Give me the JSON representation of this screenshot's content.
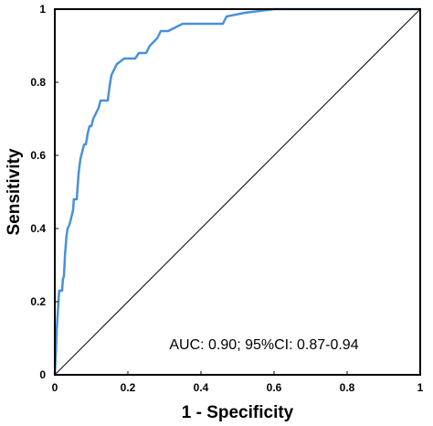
{
  "chart_data": {
    "type": "line",
    "xlabel": "1 - Specificity",
    "ylabel": "Sensitivity",
    "xlim": [
      0,
      1
    ],
    "ylim": [
      0,
      1
    ],
    "x_ticks": [
      {
        "value": 0,
        "label": "0"
      },
      {
        "value": 0.2,
        "label": "0.2"
      },
      {
        "value": 0.4,
        "label": "0.4"
      },
      {
        "value": 0.6,
        "label": "0.6"
      },
      {
        "value": 0.8,
        "label": "0.8"
      },
      {
        "value": 1,
        "label": "1"
      }
    ],
    "y_ticks": [
      {
        "value": 0,
        "label": "0"
      },
      {
        "value": 0.2,
        "label": "0.2"
      },
      {
        "value": 0.4,
        "label": "0.4"
      },
      {
        "value": 0.6,
        "label": "0.6"
      },
      {
        "value": 0.8,
        "label": "0.8"
      },
      {
        "value": 1,
        "label": "1"
      }
    ],
    "grid": false,
    "annotation": "AUC: 0.90; 95%CI: 0.87-0.94",
    "series": [
      {
        "color": "#4a90d9",
        "points": [
          [
            0,
            0
          ],
          [
            0.003,
            0.06
          ],
          [
            0.005,
            0.12
          ],
          [
            0.01,
            0.2
          ],
          [
            0.012,
            0.23
          ],
          [
            0.02,
            0.23
          ],
          [
            0.022,
            0.26
          ],
          [
            0.025,
            0.27
          ],
          [
            0.028,
            0.33
          ],
          [
            0.032,
            0.38
          ],
          [
            0.035,
            0.4
          ],
          [
            0.04,
            0.41
          ],
          [
            0.045,
            0.43
          ],
          [
            0.05,
            0.45
          ],
          [
            0.052,
            0.48
          ],
          [
            0.06,
            0.48
          ],
          [
            0.065,
            0.55
          ],
          [
            0.07,
            0.59
          ],
          [
            0.075,
            0.61
          ],
          [
            0.08,
            0.63
          ],
          [
            0.085,
            0.63
          ],
          [
            0.09,
            0.66
          ],
          [
            0.095,
            0.68
          ],
          [
            0.1,
            0.68
          ],
          [
            0.105,
            0.7
          ],
          [
            0.11,
            0.71
          ],
          [
            0.12,
            0.73
          ],
          [
            0.125,
            0.75
          ],
          [
            0.14,
            0.75
          ],
          [
            0.145,
            0.75
          ],
          [
            0.15,
            0.79
          ],
          [
            0.155,
            0.82
          ],
          [
            0.16,
            0.83
          ],
          [
            0.17,
            0.85
          ],
          [
            0.19,
            0.865
          ],
          [
            0.22,
            0.865
          ],
          [
            0.23,
            0.88
          ],
          [
            0.25,
            0.88
          ],
          [
            0.26,
            0.9
          ],
          [
            0.28,
            0.92
          ],
          [
            0.29,
            0.94
          ],
          [
            0.31,
            0.94
          ],
          [
            0.35,
            0.96
          ],
          [
            0.46,
            0.96
          ],
          [
            0.47,
            0.98
          ],
          [
            0.52,
            0.99
          ],
          [
            0.6,
            1.0
          ],
          [
            1,
            1.0
          ]
        ]
      }
    ],
    "reference_line": {
      "color": "#000000",
      "points": [
        [
          0,
          0
        ],
        [
          1,
          1
        ]
      ]
    }
  }
}
